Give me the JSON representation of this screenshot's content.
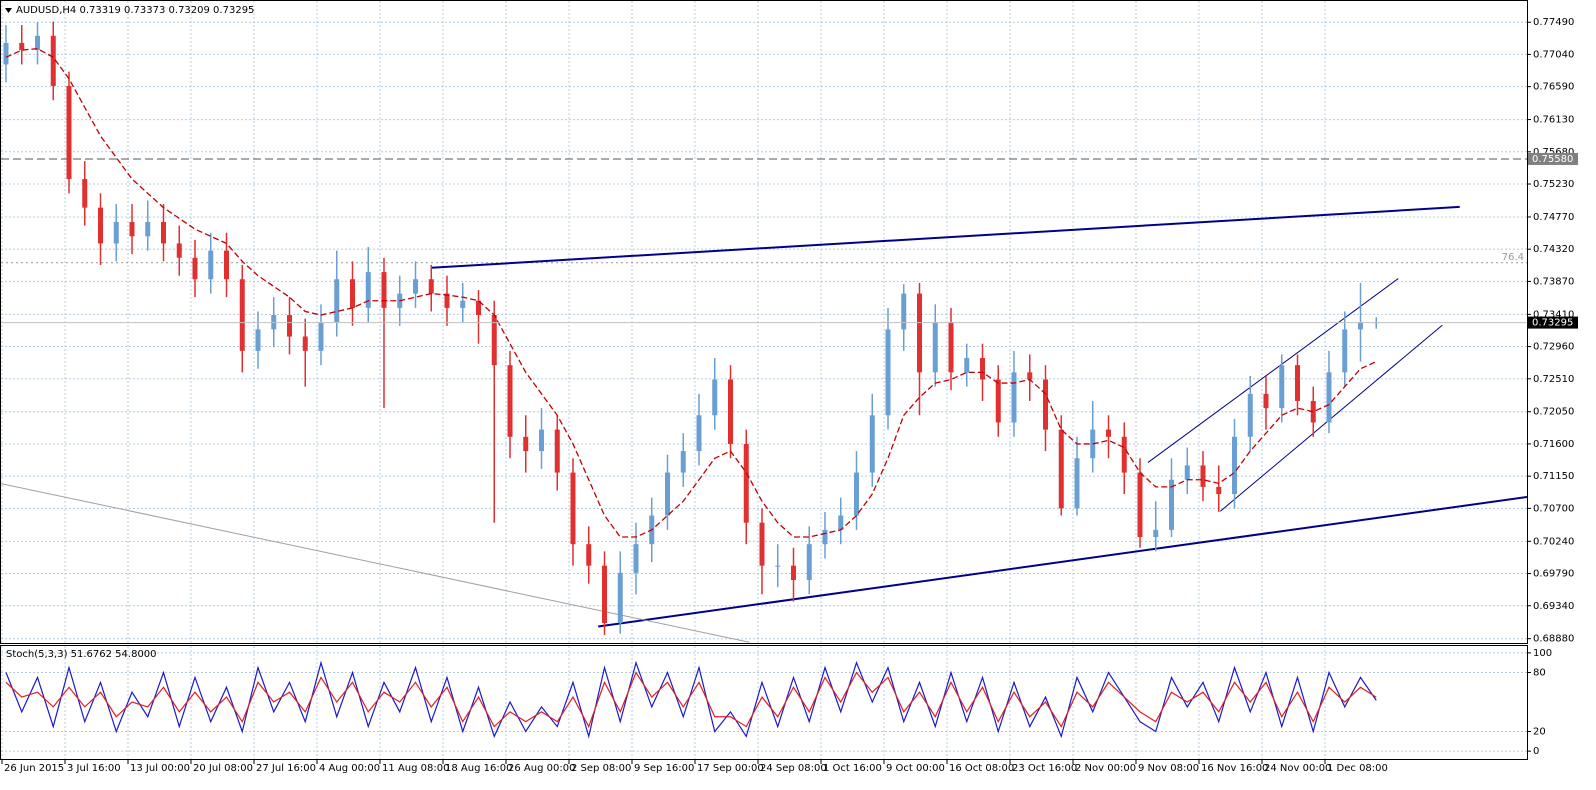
{
  "chart_data": [
    {
      "type": "candlestick",
      "title": "AUDUSD,H4  0.73319 0.73373 0.73209 0.73295",
      "categories": [
        "26 Jun 2015",
        null,
        null,
        null,
        "3 Jul 16:00",
        null,
        null,
        null,
        "13 Jul 00:00",
        null,
        null,
        null,
        "20 Jul 08:00",
        null,
        null,
        null,
        "27 Jul 16:00",
        null,
        null,
        null,
        "4 Aug 00:00",
        null,
        null,
        null,
        "11 Aug 08:00",
        null,
        null,
        null,
        "18 Aug 16:00",
        null,
        null,
        null,
        "26 Aug 00:00",
        null,
        null,
        null,
        "2 Sep 08:00",
        null,
        null,
        null,
        "9 Sep 16:00",
        null,
        null,
        null,
        "17 Sep 00:00",
        null,
        null,
        null,
        "24 Sep 08:00",
        null,
        null,
        null,
        "1 Oct 16:00",
        null,
        null,
        null,
        "9 Oct 00:00",
        null,
        null,
        null,
        "16 Oct 08:00",
        null,
        null,
        null,
        "23 Oct 16:00",
        null,
        null,
        null,
        "2 Nov 00:00",
        null,
        null,
        null,
        "9 Nov 08:00",
        null,
        null,
        null,
        "16 Nov 16:00",
        null,
        null,
        null,
        "24 Nov 00:00",
        null,
        null,
        null,
        "1 Dec 08:00",
        null,
        null,
        null
      ],
      "open": [
        0.769,
        0.772,
        0.771,
        0.773,
        0.766,
        0.753,
        0.749,
        0.744,
        0.747,
        0.745,
        0.747,
        0.744,
        0.742,
        0.739,
        0.743,
        0.739,
        0.729,
        0.732,
        0.734,
        0.731,
        0.729,
        0.733,
        0.739,
        0.735,
        0.74,
        0.735,
        0.737,
        0.739,
        0.737,
        0.735,
        0.736,
        0.734,
        0.727,
        0.717,
        0.715,
        0.718,
        0.712,
        0.702,
        0.699,
        0.691,
        0.698,
        0.702,
        0.706,
        0.712,
        0.715,
        0.72,
        0.725,
        0.716,
        0.705,
        0.699,
        0.699,
        0.697,
        0.702,
        0.704,
        0.706,
        0.712,
        0.72,
        0.732,
        0.737,
        0.726,
        0.733,
        0.726,
        0.728,
        0.725,
        0.719,
        0.726,
        0.725,
        0.718,
        0.707,
        0.714,
        0.718,
        0.717,
        0.712,
        0.703,
        0.704,
        0.711,
        0.713,
        0.71,
        0.709,
        0.717,
        0.723,
        0.721,
        0.727,
        0.722,
        0.719,
        0.726,
        0.732,
        0.733
      ],
      "high": [
        0.7745,
        0.7745,
        0.7749,
        0.775,
        0.768,
        0.7555,
        0.751,
        0.7495,
        0.7495,
        0.75,
        0.7495,
        0.7465,
        0.7445,
        0.7455,
        0.7455,
        0.741,
        0.7345,
        0.7365,
        0.7365,
        0.7335,
        0.7355,
        0.743,
        0.7415,
        0.7435,
        0.742,
        0.7395,
        0.7415,
        0.741,
        0.7395,
        0.7385,
        0.7375,
        0.736,
        0.729,
        0.72,
        0.721,
        0.72,
        0.714,
        0.7045,
        0.701,
        0.701,
        0.705,
        0.7085,
        0.7145,
        0.7175,
        0.723,
        0.728,
        0.727,
        0.718,
        0.707,
        0.702,
        0.7015,
        0.7045,
        0.7065,
        0.7085,
        0.715,
        0.723,
        0.735,
        0.7383,
        0.7385,
        0.7355,
        0.735,
        0.73,
        0.73,
        0.727,
        0.729,
        0.7285,
        0.727,
        0.72,
        0.717,
        0.722,
        0.72,
        0.719,
        0.714,
        0.708,
        0.714,
        0.7155,
        0.715,
        0.713,
        0.7195,
        0.7255,
        0.7255,
        0.7285,
        0.7285,
        0.724,
        0.729,
        0.7345,
        0.7385,
        0.7337
      ],
      "low": [
        0.7665,
        0.769,
        0.769,
        0.764,
        0.751,
        0.7465,
        0.741,
        0.7415,
        0.7425,
        0.743,
        0.7415,
        0.7395,
        0.7365,
        0.737,
        0.7365,
        0.726,
        0.7265,
        0.7295,
        0.7285,
        0.724,
        0.727,
        0.731,
        0.7325,
        0.733,
        0.721,
        0.7325,
        0.735,
        0.7345,
        0.7325,
        0.733,
        0.73,
        0.705,
        0.714,
        0.712,
        0.7125,
        0.7095,
        0.699,
        0.6965,
        0.6893,
        0.6895,
        0.695,
        0.6995,
        0.704,
        0.71,
        0.713,
        0.718,
        0.714,
        0.702,
        0.695,
        0.696,
        0.694,
        0.695,
        0.7,
        0.702,
        0.704,
        0.71,
        0.718,
        0.729,
        0.72,
        0.724,
        0.7235,
        0.724,
        0.722,
        0.717,
        0.717,
        0.722,
        0.715,
        0.706,
        0.706,
        0.712,
        0.714,
        0.709,
        0.7015,
        0.701,
        0.703,
        0.709,
        0.708,
        0.7065,
        0.707,
        0.715,
        0.718,
        0.719,
        0.72,
        0.717,
        0.7175,
        0.724,
        0.7275,
        0.7321
      ],
      "close": [
        0.772,
        0.771,
        0.773,
        0.766,
        0.753,
        0.749,
        0.744,
        0.747,
        0.745,
        0.747,
        0.744,
        0.742,
        0.739,
        0.743,
        0.739,
        0.729,
        0.732,
        0.734,
        0.731,
        0.729,
        0.733,
        0.739,
        0.735,
        0.74,
        0.735,
        0.737,
        0.739,
        0.737,
        0.735,
        0.736,
        0.734,
        0.727,
        0.717,
        0.715,
        0.718,
        0.712,
        0.702,
        0.699,
        0.691,
        0.698,
        0.702,
        0.706,
        0.712,
        0.715,
        0.72,
        0.725,
        0.716,
        0.705,
        0.699,
        0.699,
        0.697,
        0.702,
        0.704,
        0.706,
        0.712,
        0.72,
        0.732,
        0.737,
        0.726,
        0.733,
        0.726,
        0.728,
        0.725,
        0.719,
        0.726,
        0.725,
        0.718,
        0.707,
        0.714,
        0.718,
        0.717,
        0.712,
        0.703,
        0.704,
        0.711,
        0.713,
        0.71,
        0.709,
        0.717,
        0.723,
        0.721,
        0.727,
        0.722,
        0.719,
        0.726,
        0.732,
        0.733,
        0.733
      ],
      "up_color": "#6a9fd4",
      "down_color": "#e03030",
      "ma": {
        "color": "#c00000",
        "values": [
          0.77,
          0.771,
          0.7712,
          0.77,
          0.767,
          0.763,
          0.759,
          0.756,
          0.753,
          0.751,
          0.749,
          0.7475,
          0.746,
          0.745,
          0.744,
          0.7415,
          0.7395,
          0.738,
          0.7365,
          0.7345,
          0.734,
          0.7345,
          0.735,
          0.736,
          0.736,
          0.736,
          0.7365,
          0.737,
          0.7368,
          0.7365,
          0.736,
          0.734,
          0.73,
          0.726,
          0.723,
          0.72,
          0.716,
          0.711,
          0.706,
          0.703,
          0.703,
          0.704,
          0.706,
          0.708,
          0.711,
          0.714,
          0.715,
          0.712,
          0.708,
          0.705,
          0.703,
          0.703,
          0.7035,
          0.704,
          0.706,
          0.709,
          0.714,
          0.72,
          0.7225,
          0.7245,
          0.725,
          0.726,
          0.726,
          0.7245,
          0.7245,
          0.725,
          0.723,
          0.718,
          0.716,
          0.716,
          0.7165,
          0.7155,
          0.712,
          0.71,
          0.71,
          0.711,
          0.711,
          0.7105,
          0.712,
          0.715,
          0.7175,
          0.72,
          0.721,
          0.7205,
          0.7215,
          0.724,
          0.7265,
          0.7275
        ]
      },
      "trendlines": [
        {
          "color": "#00008b",
          "width": 2,
          "x": [
            27.0,
            92.3
          ],
          "y": [
            0.7406,
            0.7491
          ]
        },
        {
          "color": "#00008b",
          "width": 2,
          "x": [
            37.6,
            96.6
          ],
          "y": [
            0.6905,
            0.7086
          ]
        },
        {
          "color": "#00008b",
          "width": 1,
          "x": [
            72.5,
            88.4
          ],
          "y": [
            0.7134,
            0.7391
          ]
        },
        {
          "color": "#00008b",
          "width": 1,
          "x": [
            77.1,
            91.2
          ],
          "y": [
            0.7066,
            0.7326
          ]
        },
        {
          "color": "#a0a0a0",
          "width": 1,
          "x": [
            -0.4,
            47.2
          ],
          "y": [
            0.7105,
            0.6883
          ]
        }
      ],
      "levels": [
        {
          "value": 0.7558,
          "label": "0.75580",
          "style": "dashed"
        },
        {
          "value": 0.7413,
          "label": "76.4",
          "style": "dotted"
        }
      ],
      "current_price": {
        "value": 0.73295,
        "label": "0.73295"
      },
      "ylim": [
        0.6882,
        0.778
      ],
      "yticks": [
        {
          "value": 0.7749,
          "label": "0.77490"
        },
        {
          "value": 0.7704,
          "label": "0.77040"
        },
        {
          "value": 0.7659,
          "label": "0.76590"
        },
        {
          "value": 0.7613,
          "label": "0.76130"
        },
        {
          "value": 0.7568,
          "label": "0.75680"
        },
        {
          "value": 0.7523,
          "label": "0.75230"
        },
        {
          "value": 0.7477,
          "label": "0.74770"
        },
        {
          "value": 0.7432,
          "label": "0.74320"
        },
        {
          "value": 0.7387,
          "label": "0.73870"
        },
        {
          "value": 0.7341,
          "label": "0.73410"
        },
        {
          "value": 0.7296,
          "label": "0.72960"
        },
        {
          "value": 0.7251,
          "label": "0.72510"
        },
        {
          "value": 0.7205,
          "label": "0.72050"
        },
        {
          "value": 0.716,
          "label": "0.71600"
        },
        {
          "value": 0.7115,
          "label": "0.71150"
        },
        {
          "value": 0.707,
          "label": "0.70700"
        },
        {
          "value": 0.7024,
          "label": "0.70240"
        },
        {
          "value": 0.6979,
          "label": "0.69790"
        },
        {
          "value": 0.6934,
          "label": "0.69340"
        },
        {
          "value": 0.6888,
          "label": "0.68880"
        }
      ],
      "grid": true
    },
    {
      "type": "line",
      "title": "Stoch(5,3,3) 51.6762 54.8000",
      "series": [
        {
          "color": "#1a1acd",
          "values": [
            80,
            40,
            75,
            25,
            85,
            30,
            70,
            20,
            60,
            35,
            80,
            25,
            75,
            30,
            65,
            20,
            85,
            40,
            70,
            30,
            90,
            35,
            80,
            25,
            70,
            40,
            85,
            30,
            75,
            20,
            65,
            15,
            50,
            20,
            45,
            25,
            70,
            15,
            85,
            30,
            90,
            45,
            80,
            35,
            85,
            20,
            40,
            15,
            70,
            25,
            75,
            30,
            85,
            40,
            90,
            50,
            85,
            30,
            70,
            25,
            80,
            30,
            75,
            20,
            70,
            25,
            55,
            15,
            75,
            40,
            80,
            55,
            30,
            20,
            75,
            45,
            70,
            30,
            85,
            40,
            80,
            25,
            75,
            20,
            80,
            45,
            75,
            51.6762
          ]
        },
        {
          "color": "#e02020",
          "values": [
            70,
            55,
            60,
            45,
            65,
            45,
            60,
            35,
            50,
            45,
            65,
            40,
            60,
            40,
            55,
            30,
            70,
            50,
            60,
            40,
            75,
            50,
            70,
            40,
            60,
            50,
            70,
            45,
            65,
            30,
            55,
            25,
            40,
            30,
            40,
            30,
            55,
            25,
            70,
            40,
            80,
            55,
            70,
            45,
            70,
            35,
            35,
            25,
            55,
            35,
            65,
            40,
            75,
            50,
            80,
            60,
            75,
            40,
            60,
            35,
            70,
            40,
            65,
            30,
            60,
            35,
            50,
            25,
            60,
            45,
            70,
            55,
            40,
            30,
            60,
            50,
            60,
            40,
            70,
            50,
            70,
            35,
            60,
            30,
            65,
            50,
            65,
            54.8
          ]
        }
      ],
      "ylim": [
        -9,
        107
      ],
      "yticks": [
        100,
        80,
        20,
        0
      ],
      "grid": true
    }
  ]
}
